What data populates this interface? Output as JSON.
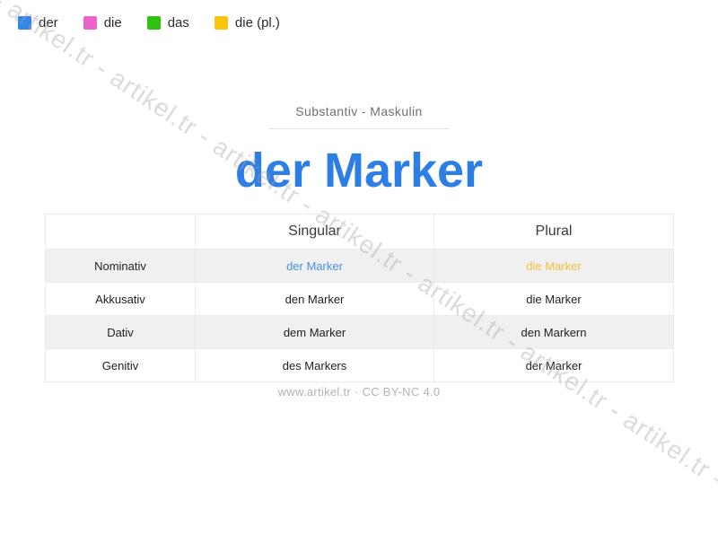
{
  "colors": {
    "der_blue": "#3186ea",
    "die_pink": "#ec64c8",
    "das_green": "#2fc213",
    "die_pl_yellow": "#fbc40f",
    "title_blue": "#2d7ee5",
    "nominativ_singular_text": "#4a90e2",
    "nominativ_plural_text": "#f2c23c",
    "row_alt_background": "#f0f0f1"
  },
  "legend": {
    "items": [
      {
        "label": "der",
        "color": "#3186ea"
      },
      {
        "label": "die",
        "color": "#ec64c8"
      },
      {
        "label": "das",
        "color": "#2fc213"
      },
      {
        "label": "die (pl.)",
        "color": "#fbc40f"
      }
    ]
  },
  "header": {
    "subtitle": "Substantiv - Maskulin",
    "title": "der Marker"
  },
  "table": {
    "headers": {
      "singular": "Singular",
      "plural": "Plural"
    },
    "rows": [
      {
        "case": "Nominativ",
        "singular": "der Marker",
        "plural": "die Marker"
      },
      {
        "case": "Akkusativ",
        "singular": "den Marker",
        "plural": "die Marker"
      },
      {
        "case": "Dativ",
        "singular": "dem Marker",
        "plural": "den Markern"
      },
      {
        "case": "Genitiv",
        "singular": "des Markers",
        "plural": "der Marker"
      }
    ]
  },
  "footer": {
    "text": "www.artikel.tr · CC BY-NC 4.0"
  },
  "watermark": {
    "text": "artikel.tr",
    "separator": " - ",
    "repeat": 9
  }
}
